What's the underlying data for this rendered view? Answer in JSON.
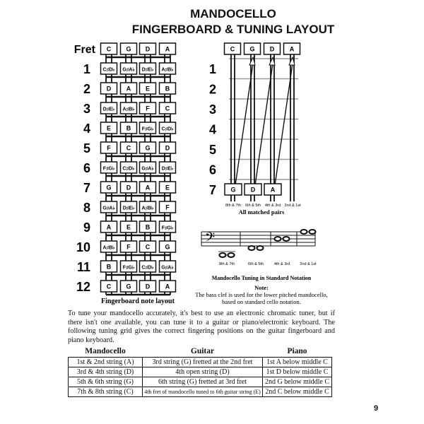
{
  "title": {
    "line1": "MANDOCELLO",
    "line2": "FINGERBOARD & TUNING LAYOUT"
  },
  "fingerboard": {
    "fret_label": "Fret",
    "open_strings": [
      "C",
      "G",
      "D",
      "A"
    ],
    "frets": [
      {
        "number": "1",
        "notes": [
          "C♯D♭",
          "G♯A♭",
          "D♯E♭",
          "A♯B♭"
        ]
      },
      {
        "number": "2",
        "notes": [
          "D",
          "A",
          "E",
          "B"
        ]
      },
      {
        "number": "3",
        "notes": [
          "D♯E♭",
          "A♯B♭",
          "F",
          "C"
        ]
      },
      {
        "number": "4",
        "notes": [
          "E",
          "B",
          "F♯G♭",
          "C♯D♭"
        ]
      },
      {
        "number": "5",
        "notes": [
          "F",
          "C",
          "G",
          "D"
        ]
      },
      {
        "number": "6",
        "notes": [
          "F♯G♭",
          "C♯D♭",
          "G♯A♭",
          "D♯E♭"
        ]
      },
      {
        "number": "7",
        "notes": [
          "G",
          "D",
          "A",
          "E"
        ]
      },
      {
        "number": "8",
        "notes": [
          "G♯A♭",
          "D♯E♭",
          "A♯B♭",
          "F"
        ]
      },
      {
        "number": "9",
        "notes": [
          "A",
          "E",
          "B",
          "F♯G♭"
        ]
      },
      {
        "number": "10",
        "notes": [
          "A♯B♭",
          "F",
          "C",
          "G"
        ]
      },
      {
        "number": "11",
        "notes": [
          "B",
          "F♯G♭",
          "C♯D♭",
          "G♯A♭"
        ]
      },
      {
        "number": "12",
        "notes": [
          "C",
          "G",
          "D",
          "A"
        ]
      }
    ],
    "caption": "Fingerboard note layout"
  },
  "matched_pairs": {
    "open_strings": [
      "C",
      "G",
      "D",
      "A"
    ],
    "fret_numbers": [
      "1",
      "2",
      "3",
      "4",
      "5",
      "6",
      "7"
    ],
    "seventh_fret_notes": [
      "G",
      "D",
      "A"
    ],
    "pair_labels": [
      "8th & 7th",
      "6th & 5th",
      "4th & 3rd",
      "2nd & 1st"
    ],
    "caption": "All matched pairs"
  },
  "notation": {
    "pair_labels": [
      "8th & 7th",
      "6th & 5th",
      "4th & 3rd",
      "2nd & 1st"
    ],
    "caption": "Mandocello Tuning in Standard Notation",
    "note_heading": "Note:",
    "note_line1": "The bass clef is used for the lower pitched mandocello,",
    "note_line2": "based on standard cello notation."
  },
  "paragraph": "To tune your mandocello accurately, it's best to use an electronic chromatic tuner, but if there isn't one available, you can tune it to a guitar or piano/electronic keyboard. The following tuning grid gives the correct fingering positions on the guitar fingerboard and piano keyboard.",
  "tuning_table": {
    "headers": [
      "Mandocello",
      "Guitar",
      "Piano"
    ],
    "rows": [
      [
        "1st & 2nd string (A)",
        "3rd string (G) fretted at the 2nd fret",
        "1st A below middle C"
      ],
      [
        "3rd & 4th string (D)",
        "4th open string (D)",
        "1st D below middle C"
      ],
      [
        "5th & 6th string (G)",
        "6th string (G) fretted at 3rd fret",
        "2nd G below middle C"
      ],
      [
        "7th & 8th string (C)",
        "4th fret of mandocello tuned to 6th guitar string (E)",
        "2nd C below middle C"
      ]
    ]
  },
  "page_number": "9"
}
